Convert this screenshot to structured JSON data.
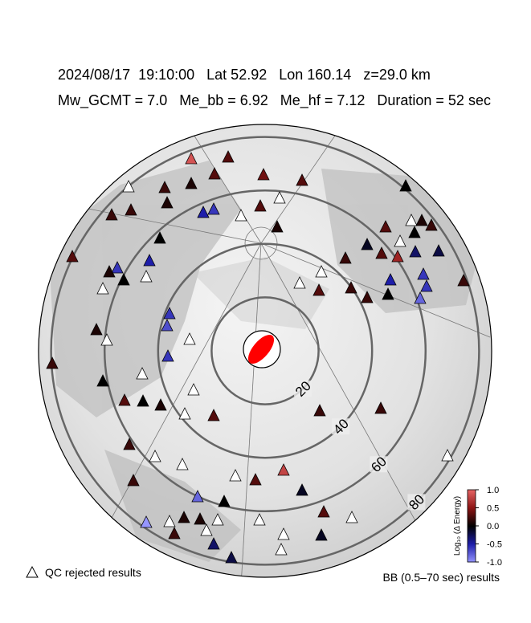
{
  "header": {
    "line1": "2024/08/17  19:10:00   Lat 52.92   Lon 160.14   z=29.0 km",
    "line2": "Mw_GCMT = 7.0   Me_bb = 6.92   Me_hf = 7.12   Duration = 52 sec"
  },
  "distance_rings": [
    20,
    40,
    60,
    80
  ],
  "stations": [
    0.9,
    0.3,
    0.3,
    0.4,
    0.3,
    null,
    0.2,
    0.1,
    null,
    0.1,
    0.2,
    0.2,
    0.3,
    null,
    -0.5,
    -0.6,
    0,
    null,
    0.1,
    0.3,
    0.2,
    0,
    0.1,
    null,
    0,
    -0.1,
    0.3,
    0.3,
    0.6,
    -0.3,
    -0.2,
    0.2,
    -0.5,
    -0.6,
    0.1,
    0,
    null,
    null,
    -0.6,
    null,
    0.3,
    0.2,
    -0.5,
    -0.6,
    0.2,
    null,
    0,
    -0.8,
    0.2,
    -0.6,
    -0.7,
    0.1,
    null,
    null,
    -0.6,
    0.2,
    null,
    0,
    null,
    0.3,
    0,
    0.1,
    null,
    0.3,
    0.2,
    0.2,
    0.2,
    null,
    null,
    null,
    0.3,
    0.8,
    -0.1,
    null,
    0.2,
    -0.8,
    0,
    0.3,
    null,
    null,
    -1.0,
    null,
    0.1,
    0.1,
    null,
    0.2,
    null,
    null,
    -0.1,
    -0.3,
    null,
    -0.2
  ],
  "colorbar": {
    "label": "Log₁₀ (Δ Energy)",
    "lim": [
      -1,
      1
    ],
    "ticks": [
      {
        "value": 1,
        "label": "1.0"
      },
      {
        "value": 0.5,
        "label": "0.5"
      },
      {
        "value": 0,
        "label": "0.0"
      },
      {
        "value": -0.5,
        "label": "-0.5"
      },
      {
        "value": -1,
        "label": "-1.0"
      }
    ]
  },
  "legend": {
    "qc": "QC rejected results",
    "bb": "BB (0.5–70 sec) results"
  }
}
